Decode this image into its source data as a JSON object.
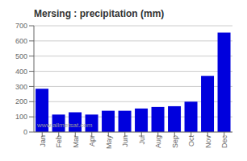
{
  "chart_data": {
    "type": "bar",
    "title": "Mersing : precipitation (mm)",
    "categories": [
      "Jan",
      "Feb",
      "Mar",
      "Apr",
      "May",
      "Jun",
      "Jul",
      "Aug",
      "Sep",
      "Oct",
      "Nov",
      "Dec"
    ],
    "values": [
      285,
      115,
      130,
      115,
      140,
      140,
      155,
      165,
      170,
      200,
      370,
      655
    ],
    "color": "#0000DD",
    "ylim": [
      0,
      700
    ],
    "yticks": [
      0,
      100,
      200,
      300,
      400,
      500,
      600,
      700
    ],
    "grid": true,
    "annotations": [
      "www.allmetsat.com"
    ]
  }
}
